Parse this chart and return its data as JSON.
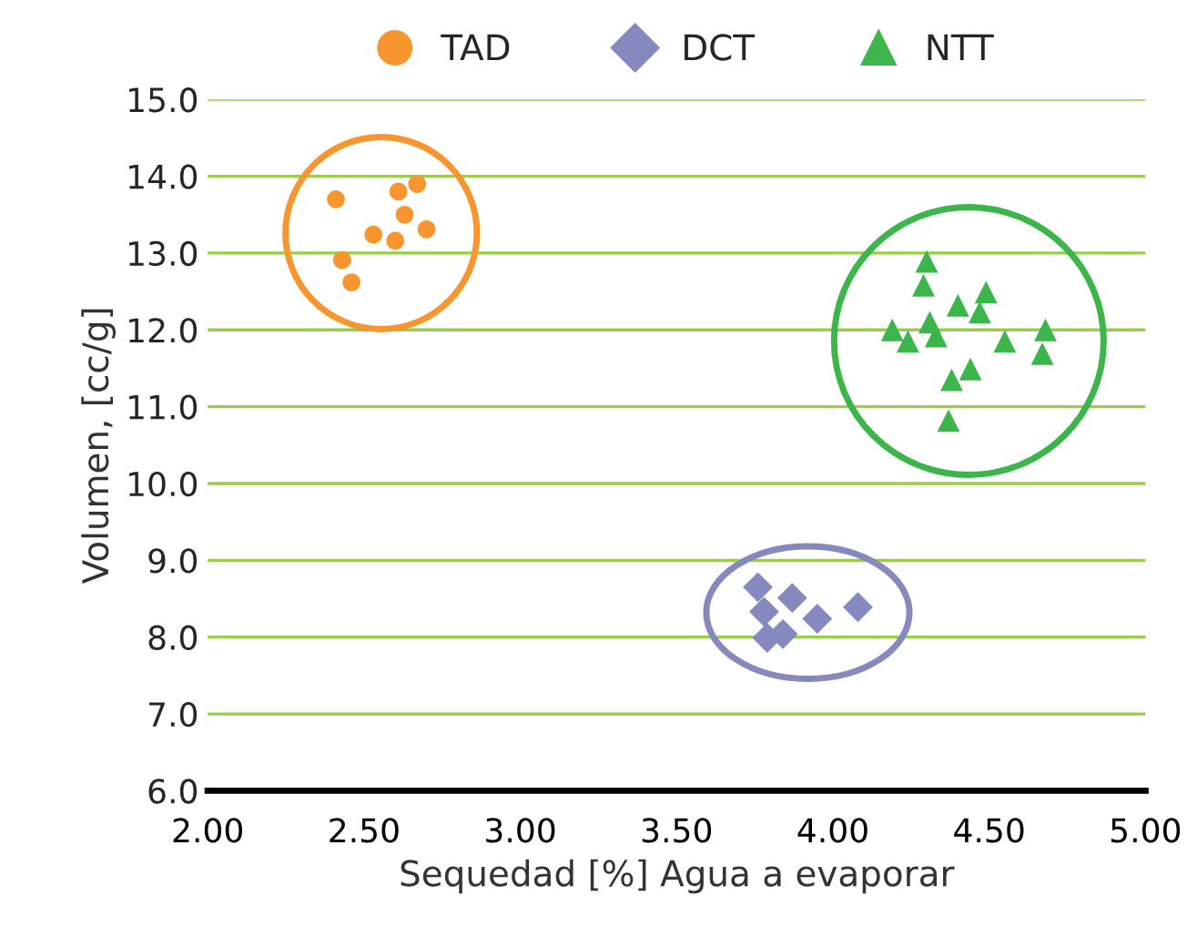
{
  "chart_data": {
    "type": "scatter",
    "xlabel": "Sequedad [%] Agua a evaporar",
    "ylabel": "Volumen, [cc/g]",
    "xlim": [
      2.0,
      5.0
    ],
    "ylim": [
      6.0,
      15.0
    ],
    "xticks": [
      {
        "value": 2.0,
        "label": "2.00"
      },
      {
        "value": 2.5,
        "label": "2.50"
      },
      {
        "value": 3.0,
        "label": "3.00"
      },
      {
        "value": 3.5,
        "label": "3.50"
      },
      {
        "value": 4.0,
        "label": "4.00"
      },
      {
        "value": 4.5,
        "label": "4.50"
      },
      {
        "value": 5.0,
        "label": "5.00"
      }
    ],
    "yticks": [
      {
        "value": 6.0,
        "label": "6.0"
      },
      {
        "value": 7.0,
        "label": "7.0"
      },
      {
        "value": 8.0,
        "label": "8.0"
      },
      {
        "value": 9.0,
        "label": "9.0"
      },
      {
        "value": 10.0,
        "label": "10.0"
      },
      {
        "value": 11.0,
        "label": "11.0"
      },
      {
        "value": 12.0,
        "label": "12.0"
      },
      {
        "value": 13.0,
        "label": "13.0"
      },
      {
        "value": 14.0,
        "label": "14.0"
      },
      {
        "value": 15.0,
        "label": "15.0"
      }
    ],
    "grid": "y",
    "legend": "top",
    "series": [
      {
        "name": "TAD",
        "color": "#f7952e",
        "marker": "circle",
        "x": [
          2.41,
          2.61,
          2.67,
          2.63,
          2.7,
          2.53,
          2.6,
          2.43,
          2.46
        ],
        "values": [
          13.7,
          13.8,
          13.9,
          13.5,
          13.31,
          13.24,
          13.16,
          12.91,
          12.62
        ]
      },
      {
        "name": "DCT",
        "color": "#8589bd",
        "marker": "diamond",
        "x": [
          3.76,
          3.78,
          3.87,
          3.95,
          4.08,
          3.79,
          3.84
        ],
        "values": [
          8.65,
          8.33,
          8.51,
          8.24,
          8.39,
          7.99,
          8.04
        ]
      },
      {
        "name": "NTT",
        "color": "#3cb54a",
        "marker": "triangle",
        "x": [
          4.3,
          4.29,
          4.4,
          4.49,
          4.47,
          4.31,
          4.33,
          4.19,
          4.24,
          4.55,
          4.68,
          4.67,
          4.44,
          4.38,
          4.37
        ],
        "values": [
          12.89,
          12.58,
          12.32,
          12.49,
          12.23,
          12.1,
          11.92,
          12.0,
          11.85,
          11.85,
          12.0,
          11.69,
          11.49,
          11.35,
          10.82
        ]
      }
    ]
  }
}
